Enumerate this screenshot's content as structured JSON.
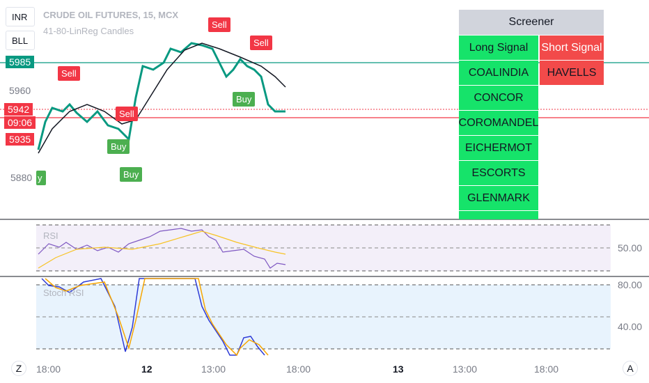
{
  "header": {
    "currency": "INR",
    "mode": "BLL",
    "title": "CRUDE OIL FUTURES, 15, MCX",
    "indicator": "41-80-LinReg Candles"
  },
  "price_scale": {
    "levels": [
      "5985",
      "5960",
      "5942",
      "5935",
      "5880"
    ],
    "countdown": "09:06"
  },
  "signals": {
    "sell": [
      "Sell",
      "Sell",
      "Sell",
      "Sell"
    ],
    "buy": [
      "Buy",
      "Buy",
      "Buy",
      "y"
    ]
  },
  "screener": {
    "title": "Screener",
    "long_header": "Long Signal",
    "short_header": "Short Signal",
    "long": [
      "COALINDIA",
      "CONCOR",
      "COROMANDEL",
      "EICHERMOT",
      "ESCORTS",
      "GLENMARK"
    ],
    "short": [
      "HAVELLS"
    ]
  },
  "rsi": {
    "title": "RSI",
    "ticks": [
      "50.00"
    ]
  },
  "stoch_rsi": {
    "title": "Stoch RSI",
    "ticks": [
      "80.00",
      "40.00"
    ]
  },
  "time_axis": [
    "18:00",
    "12",
    "13:00",
    "18:00",
    "13",
    "13:00",
    "18:00"
  ],
  "buttons": {
    "left": "Z",
    "right": "A"
  }
}
